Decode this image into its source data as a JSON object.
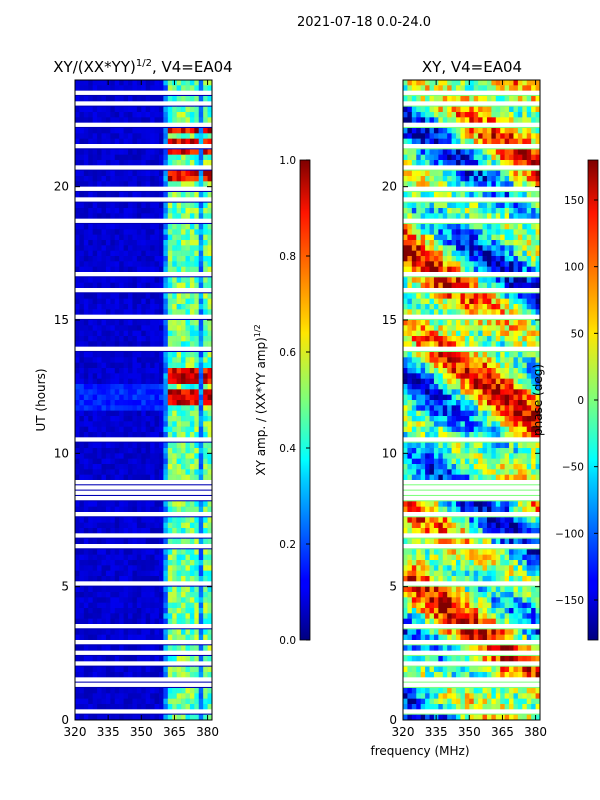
{
  "figure_title": "2021-07-18 0.0-24.0",
  "shared_xlabel": "frequency (MHz)",
  "chart_data": [
    {
      "type": "heatmap",
      "title_main": "XY/(XX*YY)",
      "title_exp": "1/2",
      "title_tail": ", V4=EA04",
      "ylabel": "UT (hours)",
      "x_ticks": [
        320,
        335,
        350,
        365,
        380
      ],
      "xlim": [
        320,
        382
      ],
      "y_ticks": [
        0,
        5,
        10,
        15,
        20
      ],
      "ylim": [
        0,
        24
      ],
      "colorbar": {
        "label_main": "XY amp. / (XX*YY amp)",
        "label_exp": "1/2",
        "range": [
          0.0,
          1.0
        ],
        "ticks": [
          "0.0",
          "0.2",
          "0.4",
          "0.6",
          "0.8",
          "1.0"
        ],
        "tick_values": [
          0.0,
          0.2,
          0.4,
          0.6,
          0.8,
          1.0
        ],
        "colormap": "jet"
      },
      "approx_features": {
        "background_value": 0.05,
        "active_band_start_mhz": 360,
        "high_value_hours": [
          12.1,
          12.9,
          20.5,
          21.5,
          22.2
        ]
      }
    },
    {
      "type": "heatmap",
      "title": "XY, V4=EA04",
      "x_ticks": [
        320,
        335,
        350,
        365,
        380
      ],
      "xlim": [
        320,
        382
      ],
      "y_ticks": [
        0,
        5,
        10,
        15,
        20
      ],
      "ylim": [
        0,
        24
      ],
      "colorbar": {
        "label": "phase (deg)",
        "range": [
          -180,
          180
        ],
        "ticks": [
          "−150",
          "−100",
          "−50",
          "0",
          "50",
          "100",
          "150"
        ],
        "tick_values": [
          -150,
          -100,
          -50,
          0,
          50,
          100,
          150
        ],
        "colormap": "jet"
      }
    }
  ]
}
